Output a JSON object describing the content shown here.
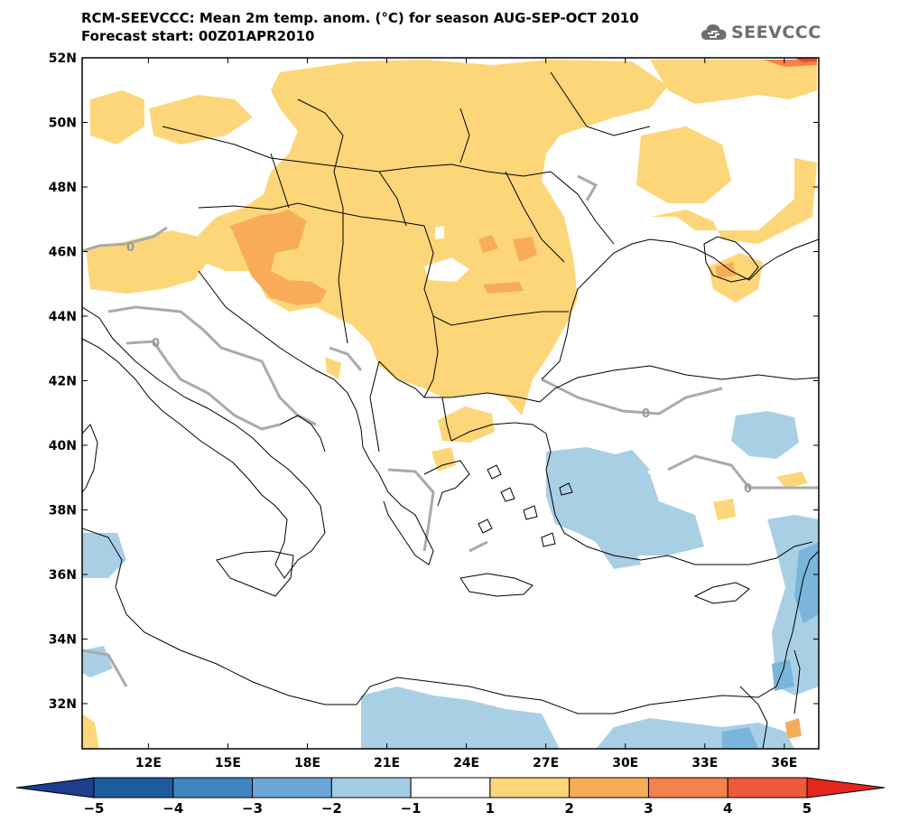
{
  "header": {
    "title": "RCM-SEEVCCC: Mean 2m temp. anom. (°C) for season AUG-SEP-OCT 2010",
    "subtitle": "Forecast start: 00Z01APR2010",
    "logo_text": "SEEVCCC",
    "logo_icon": "cloud-logo-icon"
  },
  "map": {
    "projection": "lat-lon",
    "lon_range": [
      9.5,
      37.3
    ],
    "lat_range": [
      30.6,
      52
    ],
    "lat_ticks": [
      {
        "value": 52,
        "label": "52N"
      },
      {
        "value": 50,
        "label": "50N"
      },
      {
        "value": 48,
        "label": "48N"
      },
      {
        "value": 46,
        "label": "46N"
      },
      {
        "value": 44,
        "label": "44N"
      },
      {
        "value": 42,
        "label": "42N"
      },
      {
        "value": 40,
        "label": "40N"
      },
      {
        "value": 38,
        "label": "38N"
      },
      {
        "value": 36,
        "label": "36N"
      },
      {
        "value": 34,
        "label": "34N"
      },
      {
        "value": 32,
        "label": "32N"
      }
    ],
    "lon_ticks": [
      {
        "value": 12,
        "label": "12E"
      },
      {
        "value": 15,
        "label": "15E"
      },
      {
        "value": 18,
        "label": "18E"
      },
      {
        "value": 21,
        "label": "21E"
      },
      {
        "value": 24,
        "label": "24E"
      },
      {
        "value": 27,
        "label": "27E"
      },
      {
        "value": 30,
        "label": "30E"
      },
      {
        "value": 33,
        "label": "33E"
      },
      {
        "value": 36,
        "label": "36E"
      }
    ],
    "contour_label": "0",
    "colors": {
      "warm_1_2": "#fcd679",
      "warm_2_3": "#f9ac58",
      "warm_3_4": "#f3834a",
      "warm_4_5": "#ea4c31",
      "cool_m1_m2": "#a9cfe5",
      "cool_m2_m3": "#7ab5dc",
      "zero_contour": "#aaaaaa",
      "coast": "#000000"
    }
  },
  "colorbar": {
    "labels": [
      "−5",
      "−4",
      "−3",
      "−2",
      "−1",
      "1",
      "2",
      "3",
      "4",
      "5"
    ],
    "colors": [
      "#1e5a9e",
      "#3f86c1",
      "#6aa7d6",
      "#a2cbe4",
      "#ffffff",
      "#fcd679",
      "#f9ac58",
      "#f3834a",
      "#ec5a39"
    ],
    "low_arrow_color": "#1a3f8f",
    "high_arrow_color": "#e4261c"
  }
}
